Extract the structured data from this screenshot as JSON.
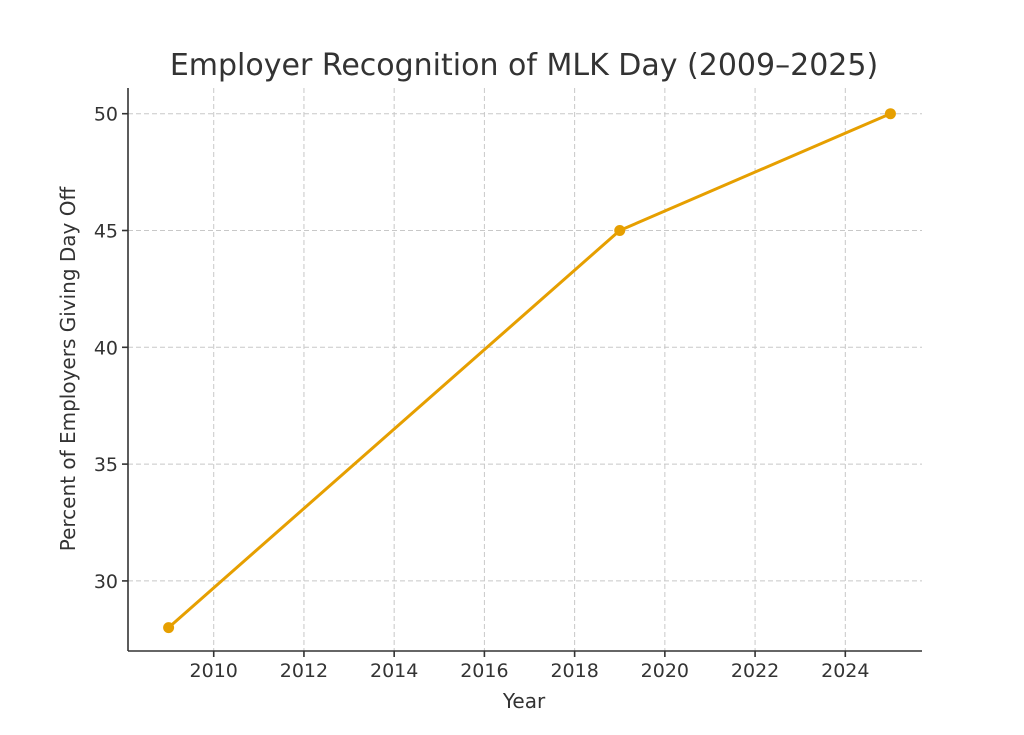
{
  "chart_data": {
    "type": "line",
    "title": "Employer Recognition of MLK Day (2009–2025)",
    "xlabel": "Year",
    "ylabel": "Percent of Employers Giving Day Off",
    "xlim": [
      2008.1,
      2025.7
    ],
    "ylim": [
      27.0,
      51.1
    ],
    "xticks": [
      2010,
      2012,
      2014,
      2016,
      2018,
      2020,
      2022,
      2024
    ],
    "yticks": [
      30,
      35,
      40,
      45,
      50
    ],
    "grid": true,
    "series": [
      {
        "color": "#E69F00",
        "x": [
          2009,
          2019,
          2025
        ],
        "y": [
          28,
          45,
          50
        ]
      }
    ]
  }
}
